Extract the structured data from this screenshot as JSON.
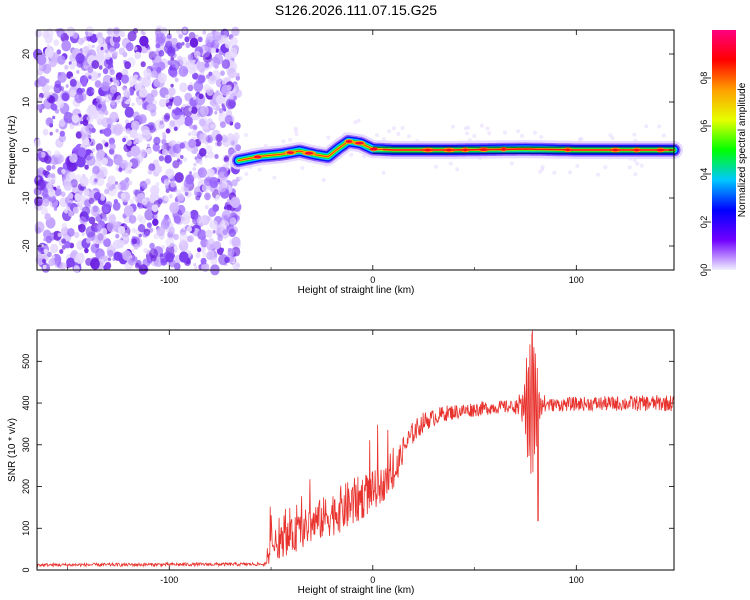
{
  "title": "S126.2026.111.07.15.G25",
  "chart_data": [
    {
      "id": "spectrogram",
      "type": "heatmap",
      "xlabel": "Height of straight line (km)",
      "ylabel": "Frequency (Hz)",
      "xlim": [
        -165,
        148
      ],
      "ylim": [
        -25,
        25
      ],
      "xticks": [
        -100,
        0,
        100
      ],
      "yticks": [
        -20,
        -10,
        0,
        10,
        20
      ],
      "noise_region_x": [
        -165,
        -66
      ],
      "signal_start_x": -66,
      "ridge": [
        {
          "x": -66,
          "y": -2.2
        },
        {
          "x": -55,
          "y": -1.3
        },
        {
          "x": -45,
          "y": -0.9
        },
        {
          "x": -36,
          "y": -0.2
        },
        {
          "x": -28,
          "y": -1.0
        },
        {
          "x": -22,
          "y": -1.4
        },
        {
          "x": -17,
          "y": 0.3
        },
        {
          "x": -12,
          "y": 1.8
        },
        {
          "x": -6,
          "y": 1.4
        },
        {
          "x": 0,
          "y": 0.2
        },
        {
          "x": 10,
          "y": 0
        },
        {
          "x": 40,
          "y": 0
        },
        {
          "x": 75,
          "y": 0.2
        },
        {
          "x": 100,
          "y": 0
        },
        {
          "x": 148,
          "y": 0
        }
      ],
      "colorbar": {
        "label": "Normalized spectral amplitude",
        "range": [
          0,
          1
        ],
        "ticks": [
          0.0,
          0.2,
          0.4,
          0.6,
          0.8
        ],
        "colors": [
          "#f0f0ff",
          "#7000ff",
          "#0000ff",
          "#00c8ff",
          "#00ff00",
          "#e6ff00",
          "#ffa000",
          "#ff0000",
          "#ff0080"
        ]
      }
    },
    {
      "id": "snr",
      "type": "line",
      "xlabel": "Height of straight line (km)",
      "ylabel": "SNR (10 * v/v)",
      "xlim": [
        -165,
        148
      ],
      "ylim": [
        0,
        575
      ],
      "xticks": [
        -100,
        0,
        100
      ],
      "yticks": [
        0,
        100,
        200,
        300,
        400,
        500
      ],
      "color": "#e8322d",
      "trend": [
        {
          "x": -165,
          "y": 12
        },
        {
          "x": -52,
          "y": 14
        },
        {
          "x": -50,
          "y": 55
        },
        {
          "x": -40,
          "y": 80
        },
        {
          "x": -30,
          "y": 110
        },
        {
          "x": -20,
          "y": 135
        },
        {
          "x": -10,
          "y": 160
        },
        {
          "x": 0,
          "y": 190
        },
        {
          "x": 10,
          "y": 220
        },
        {
          "x": 15,
          "y": 290
        },
        {
          "x": 20,
          "y": 330
        },
        {
          "x": 25,
          "y": 355
        },
        {
          "x": 35,
          "y": 375
        },
        {
          "x": 50,
          "y": 385
        },
        {
          "x": 60,
          "y": 390
        },
        {
          "x": 100,
          "y": 398
        },
        {
          "x": 148,
          "y": 400
        }
      ],
      "noise_amplitude": [
        {
          "x": -165,
          "y": 4
        },
        {
          "x": -52,
          "y": 4
        },
        {
          "x": -50,
          "y": 35
        },
        {
          "x": -10,
          "y": 60
        },
        {
          "x": 10,
          "y": 35
        },
        {
          "x": 30,
          "y": 20
        },
        {
          "x": 70,
          "y": 15
        },
        {
          "x": 148,
          "y": 20
        }
      ],
      "burst": {
        "x_range": [
          70,
          86
        ],
        "peak": 573,
        "min": 118
      }
    }
  ]
}
